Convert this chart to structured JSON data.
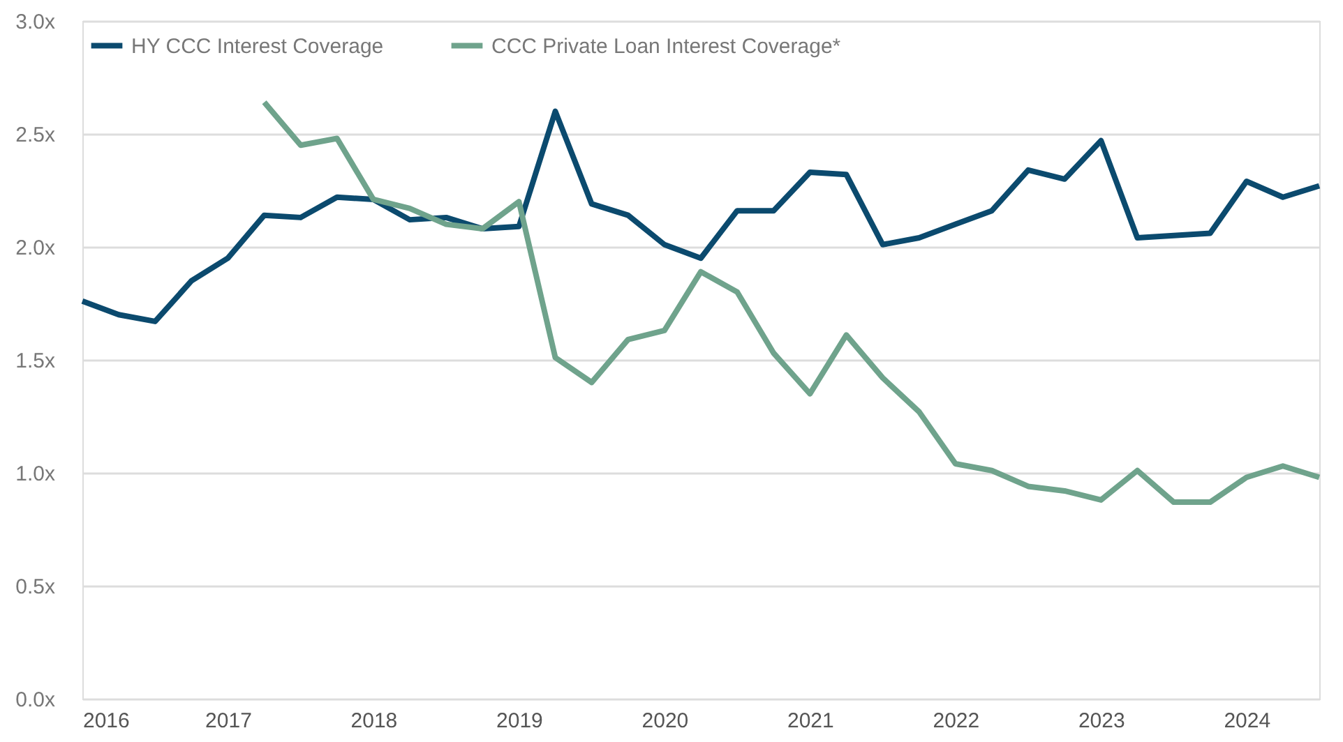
{
  "chart_data": {
    "type": "line",
    "x": [
      2016,
      2016.25,
      2016.5,
      2016.75,
      2017,
      2017.25,
      2017.5,
      2017.75,
      2018,
      2018.25,
      2018.5,
      2018.75,
      2019,
      2019.25,
      2019.5,
      2019.75,
      2020,
      2020.25,
      2020.5,
      2020.75,
      2021,
      2021.25,
      2021.5,
      2021.75,
      2022,
      2022.25,
      2022.5,
      2022.75,
      2023,
      2023.25,
      2023.5,
      2023.75,
      2024,
      2024.25,
      2024.5
    ],
    "series": [
      {
        "name": "HY CCC Interest Coverage",
        "color": "#0b4a6e",
        "values": [
          1.76,
          1.7,
          1.67,
          1.85,
          1.95,
          2.14,
          2.13,
          2.22,
          2.21,
          2.12,
          2.13,
          2.08,
          2.09,
          2.6,
          2.19,
          2.14,
          2.01,
          1.95,
          2.16,
          2.16,
          2.33,
          2.32,
          2.01,
          2.04,
          2.1,
          2.16,
          2.34,
          2.3,
          2.47,
          2.04,
          2.05,
          2.06,
          2.29,
          2.22,
          2.27
        ]
      },
      {
        "name": "CCC Private Loan Interest Coverage*",
        "color": "#6fa38c",
        "x": [
          2017.25,
          2017.5,
          2017.75,
          2018,
          2018.25,
          2018.5,
          2018.75,
          2019,
          2019.25,
          2019.5,
          2019.75,
          2020,
          2020.25,
          2020.5,
          2020.75,
          2021,
          2021.25,
          2021.5,
          2021.75,
          2022,
          2022.25,
          2022.5,
          2022.75,
          2023,
          2023.25,
          2023.5,
          2023.75,
          2024,
          2024.25,
          2024.5
        ],
        "values": [
          2.64,
          2.45,
          2.48,
          2.21,
          2.17,
          2.1,
          2.08,
          2.2,
          1.51,
          1.4,
          1.59,
          1.63,
          1.89,
          1.8,
          1.53,
          1.35,
          1.61,
          1.42,
          1.27,
          1.04,
          1.01,
          0.94,
          0.92,
          0.88,
          1.01,
          0.87,
          0.87,
          0.98,
          1.03,
          0.98
        ]
      }
    ],
    "xlim": [
      2016,
      2024.5
    ],
    "xticks": [
      2016,
      2017,
      2018,
      2019,
      2020,
      2021,
      2022,
      2023,
      2024
    ],
    "ylim": [
      0,
      3
    ],
    "yticks": [
      {
        "value": 0,
        "label": "0.0x"
      },
      {
        "value": 0.5,
        "label": "0.5x"
      },
      {
        "value": 1,
        "label": "1.0x"
      },
      {
        "value": 1.5,
        "label": "1.5x"
      },
      {
        "value": 2,
        "label": "2.0x"
      },
      {
        "value": 2.5,
        "label": "2.5x"
      },
      {
        "value": 3,
        "label": "3.0x"
      }
    ],
    "grid": "y",
    "legend": "top left",
    "line_style": "solid",
    "marker": "none"
  }
}
